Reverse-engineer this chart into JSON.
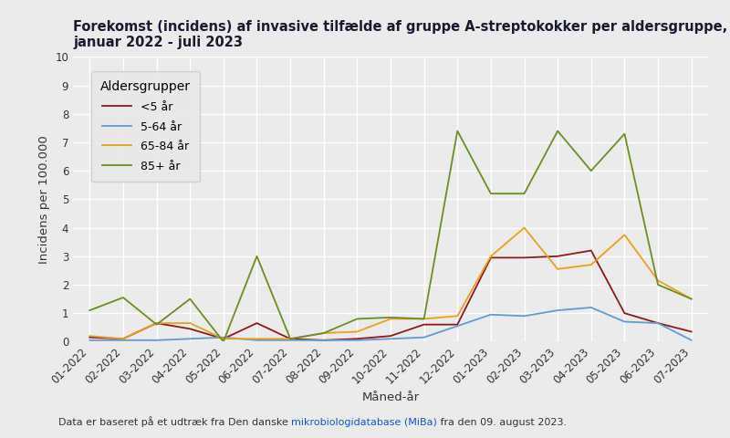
{
  "title": "Forekomst (incidens) af invasive tilfælde af gruppe A-streptokokker per aldersgruppe,\njanuar 2022 - juli 2023",
  "xlabel": "Måned-år",
  "ylabel": "Incidens per 100.000",
  "footnote_parts": [
    {
      "text": "Data er baseret på et udtræk fra Den danske ",
      "color": "#333333"
    },
    {
      "text": "mikrobiologidatabase (MiBa)",
      "color": "#1155cc"
    },
    {
      "text": " fra den 09. august 2023.",
      "color": "#333333"
    }
  ],
  "x_labels": [
    "01-2022",
    "02-2022",
    "03-2022",
    "04-2022",
    "05-2022",
    "06-2022",
    "07-2022",
    "08-2022",
    "09-2022",
    "10-2022",
    "11-2022",
    "12-2022",
    "01-2023",
    "02-2023",
    "03-2023",
    "04-2023",
    "05-2023",
    "06-2023",
    "07-2023"
  ],
  "series": [
    {
      "label": "<5 år",
      "color": "#8b1a1a",
      "values": [
        0.15,
        0.1,
        0.65,
        0.45,
        0.1,
        0.65,
        0.1,
        0.05,
        0.1,
        0.2,
        0.6,
        0.6,
        2.95,
        2.95,
        3.0,
        3.2,
        1.0,
        0.65,
        0.35
      ]
    },
    {
      "label": "5-64 år",
      "color": "#6699cc",
      "values": [
        0.05,
        0.05,
        0.05,
        0.1,
        0.15,
        0.05,
        0.05,
        0.05,
        0.05,
        0.1,
        0.15,
        0.55,
        0.95,
        0.9,
        1.1,
        1.2,
        0.7,
        0.65,
        0.05
      ]
    },
    {
      "label": "65-84 år",
      "color": "#e8a020",
      "values": [
        0.2,
        0.1,
        0.65,
        0.65,
        0.1,
        0.1,
        0.1,
        0.3,
        0.35,
        0.8,
        0.8,
        0.9,
        3.0,
        4.0,
        2.55,
        2.7,
        3.75,
        2.15,
        1.5
      ]
    },
    {
      "label": "85+ år",
      "color": "#6b8e23",
      "values": [
        1.1,
        1.55,
        0.6,
        1.5,
        0.0,
        3.0,
        0.1,
        0.3,
        0.8,
        0.85,
        0.8,
        7.4,
        5.2,
        5.2,
        7.4,
        6.0,
        7.3,
        2.0,
        1.5
      ]
    }
  ],
  "ylim": [
    0,
    10
  ],
  "yticks": [
    0,
    1,
    2,
    3,
    4,
    5,
    6,
    7,
    8,
    9,
    10
  ],
  "legend_title": "Aldersgrupper",
  "background_color": "#ebebeb",
  "plot_bg_color": "#ebebeb",
  "grid_color": "#ffffff",
  "title_fontsize": 10.5,
  "axis_label_fontsize": 9.5,
  "tick_fontsize": 8.5,
  "legend_fontsize": 9,
  "footnote_fontsize": 8
}
